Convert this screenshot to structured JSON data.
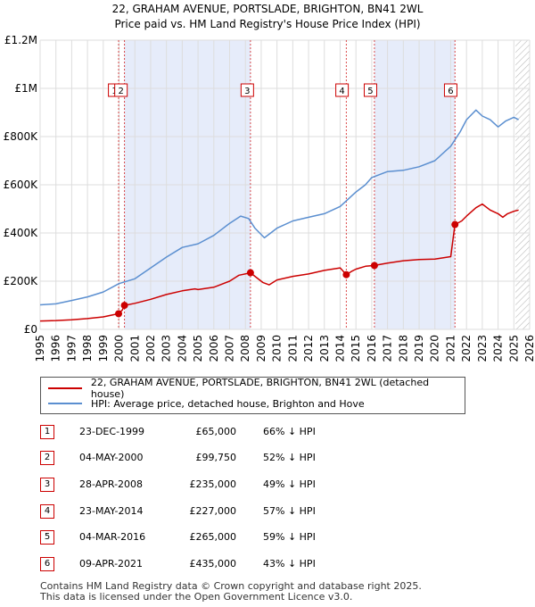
{
  "title_line1": "22, GRAHAM AVENUE, PORTSLADE, BRIGHTON, BN41 2WL",
  "title_line2": "Price paid vs. HM Land Registry's House Price Index (HPI)",
  "colors": {
    "hpi": "#5b8fd0",
    "price": "#cc0000",
    "band": "#e6ecfa",
    "grid": "#dddddd"
  },
  "chart_data": {
    "type": "line",
    "xlim": [
      1995,
      2026
    ],
    "ylim": [
      0,
      1200000
    ],
    "y_ticks": [
      {
        "value": 0,
        "label": "£0"
      },
      {
        "value": 200000,
        "label": "£200K"
      },
      {
        "value": 400000,
        "label": "£400K"
      },
      {
        "value": 600000,
        "label": "£600K"
      },
      {
        "value": 800000,
        "label": "£800K"
      },
      {
        "value": 1000000,
        "label": "£1M"
      },
      {
        "value": 1200000,
        "label": "£1.2M"
      }
    ],
    "x_ticks": [
      1995,
      1996,
      1997,
      1998,
      1999,
      2000,
      2001,
      2002,
      2003,
      2004,
      2005,
      2006,
      2007,
      2008,
      2009,
      2010,
      2011,
      2012,
      2013,
      2014,
      2015,
      2016,
      2017,
      2018,
      2019,
      2020,
      2021,
      2022,
      2023,
      2024,
      2025,
      2026
    ],
    "grid": true,
    "legend_placement": "below",
    "hatched_from": 2025.1,
    "bands": [
      [
        2000.34,
        2008.32
      ],
      [
        2016.17,
        2021.27
      ]
    ],
    "series": [
      {
        "name": "22, GRAHAM AVENUE, PORTSLADE, BRIGHTON, BN41 2WL (detached house)",
        "color": "#cc0000",
        "points": [
          [
            1995,
            35000
          ],
          [
            1996,
            36500
          ],
          [
            1997,
            40000
          ],
          [
            1998,
            45000
          ],
          [
            1999,
            52000
          ],
          [
            1999.97,
            65000
          ],
          [
            2000.2,
            80000
          ],
          [
            2000.34,
            99750
          ],
          [
            2001,
            108000
          ],
          [
            2002,
            125000
          ],
          [
            2003,
            145000
          ],
          [
            2004,
            160000
          ],
          [
            2004.8,
            168000
          ],
          [
            2005,
            165000
          ],
          [
            2006,
            175000
          ],
          [
            2007,
            200000
          ],
          [
            2007.6,
            225000
          ],
          [
            2008.32,
            235000
          ],
          [
            2008.7,
            215000
          ],
          [
            2009.1,
            195000
          ],
          [
            2009.5,
            185000
          ],
          [
            2010,
            205000
          ],
          [
            2011,
            220000
          ],
          [
            2012,
            230000
          ],
          [
            2013,
            245000
          ],
          [
            2014.0,
            255000
          ],
          [
            2014.39,
            227000
          ],
          [
            2014.7,
            240000
          ],
          [
            2015,
            250000
          ],
          [
            2015.6,
            262000
          ],
          [
            2016.17,
            265000
          ],
          [
            2017,
            275000
          ],
          [
            2018,
            285000
          ],
          [
            2019,
            290000
          ],
          [
            2020,
            292000
          ],
          [
            2021.0,
            302000
          ],
          [
            2021.27,
            435000
          ],
          [
            2021.7,
            450000
          ],
          [
            2022,
            470000
          ],
          [
            2022.6,
            505000
          ],
          [
            2023,
            520000
          ],
          [
            2023.5,
            495000
          ],
          [
            2024,
            480000
          ],
          [
            2024.3,
            465000
          ],
          [
            2024.6,
            480000
          ],
          [
            2025,
            490000
          ],
          [
            2025.3,
            495000
          ]
        ]
      },
      {
        "name": "HPI: Average price, detached house, Brighton and Hove",
        "color": "#5b8fd0",
        "points": [
          [
            1995,
            102000
          ],
          [
            1996,
            106000
          ],
          [
            1997,
            120000
          ],
          [
            1998,
            135000
          ],
          [
            1999,
            155000
          ],
          [
            2000,
            190000
          ],
          [
            2001,
            210000
          ],
          [
            2002,
            255000
          ],
          [
            2003,
            300000
          ],
          [
            2004,
            340000
          ],
          [
            2005,
            355000
          ],
          [
            2006,
            390000
          ],
          [
            2007,
            440000
          ],
          [
            2007.7,
            470000
          ],
          [
            2008.2,
            460000
          ],
          [
            2008.6,
            420000
          ],
          [
            2009.2,
            380000
          ],
          [
            2009.6,
            400000
          ],
          [
            2010,
            420000
          ],
          [
            2011,
            450000
          ],
          [
            2012,
            465000
          ],
          [
            2013,
            480000
          ],
          [
            2014,
            510000
          ],
          [
            2015,
            570000
          ],
          [
            2015.6,
            600000
          ],
          [
            2016,
            630000
          ],
          [
            2017,
            655000
          ],
          [
            2018,
            660000
          ],
          [
            2019,
            675000
          ],
          [
            2020,
            700000
          ],
          [
            2021,
            760000
          ],
          [
            2021.6,
            820000
          ],
          [
            2022,
            870000
          ],
          [
            2022.6,
            910000
          ],
          [
            2023,
            885000
          ],
          [
            2023.5,
            870000
          ],
          [
            2024,
            840000
          ],
          [
            2024.5,
            865000
          ],
          [
            2025,
            880000
          ],
          [
            2025.3,
            870000
          ]
        ]
      }
    ],
    "sales": [
      {
        "id": "1",
        "x": 1999.97,
        "y": 65000
      },
      {
        "id": "2",
        "x": 2000.34,
        "y": 99750
      },
      {
        "id": "3",
        "x": 2008.32,
        "y": 235000
      },
      {
        "id": "4",
        "x": 2014.39,
        "y": 227000
      },
      {
        "id": "5",
        "x": 2016.17,
        "y": 265000
      },
      {
        "id": "6",
        "x": 2021.27,
        "y": 435000
      }
    ],
    "marker_labels": [
      {
        "id": "1",
        "x": 1999.72
      },
      {
        "id": "2",
        "x": 2000.12
      },
      {
        "id": "3",
        "x": 2008.12
      },
      {
        "id": "4",
        "x": 2014.12
      },
      {
        "id": "5",
        "x": 2015.92
      },
      {
        "id": "6",
        "x": 2021.0
      }
    ]
  },
  "legend": {
    "price": "22, GRAHAM AVENUE, PORTSLADE, BRIGHTON, BN41 2WL (detached house)",
    "hpi": "HPI: Average price, detached house, Brighton and Hove"
  },
  "transactions": [
    {
      "num": "1",
      "date": "23-DEC-1999",
      "price": "£65,000",
      "pct": "66% ↓ HPI"
    },
    {
      "num": "2",
      "date": "04-MAY-2000",
      "price": "£99,750",
      "pct": "52% ↓ HPI"
    },
    {
      "num": "3",
      "date": "28-APR-2008",
      "price": "£235,000",
      "pct": "49% ↓ HPI"
    },
    {
      "num": "4",
      "date": "23-MAY-2014",
      "price": "£227,000",
      "pct": "57% ↓ HPI"
    },
    {
      "num": "5",
      "date": "04-MAR-2016",
      "price": "£265,000",
      "pct": "59% ↓ HPI"
    },
    {
      "num": "6",
      "date": "09-APR-2021",
      "price": "£435,000",
      "pct": "43% ↓ HPI"
    }
  ],
  "footer_line1": "Contains HM Land Registry data © Crown copyright and database right 2025.",
  "footer_line2": "This data is licensed under the Open Government Licence v3.0."
}
